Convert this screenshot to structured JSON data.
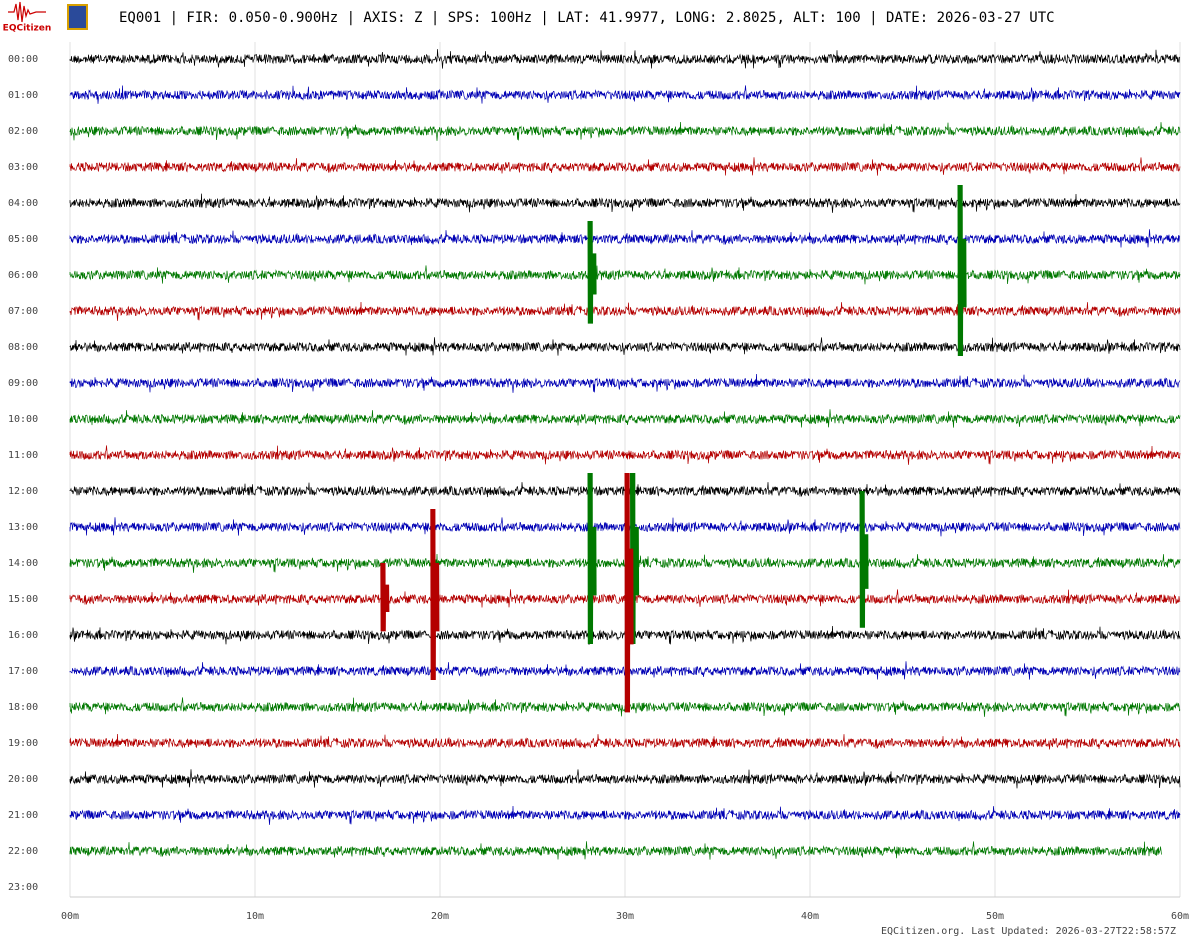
{
  "chart_data": {
    "type": "helicorder",
    "title": "EQ001 | FIR: 0.050-0.900Hz | AXIS: Z | SPS: 100Hz | LAT: 41.9977, LONG: 2.8025, ALT: 100 | DATE: 2026-03-27 UTC",
    "logo": "EQCitizen",
    "footer": "EQCitizen.org. Last Updated: 2026-03-27T22:58:57Z",
    "xlim": [
      0,
      60
    ],
    "xticks": [
      {
        "value": 0,
        "label": "00m"
      },
      {
        "value": 10,
        "label": "10m"
      },
      {
        "value": 20,
        "label": "20m"
      },
      {
        "value": 30,
        "label": "30m"
      },
      {
        "value": 40,
        "label": "40m"
      },
      {
        "value": 50,
        "label": "50m"
      },
      {
        "value": 60,
        "label": "60m"
      }
    ],
    "grid": true,
    "rows": [
      {
        "label": "00:00",
        "color": "#000000",
        "end": 60
      },
      {
        "label": "01:00",
        "color": "#0000b4",
        "end": 60
      },
      {
        "label": "02:00",
        "color": "#007800",
        "end": 60
      },
      {
        "label": "03:00",
        "color": "#b40000",
        "end": 60
      },
      {
        "label": "04:00",
        "color": "#000000",
        "end": 60
      },
      {
        "label": "05:00",
        "color": "#0000b4",
        "end": 60
      },
      {
        "label": "06:00",
        "color": "#007800",
        "end": 60
      },
      {
        "label": "07:00",
        "color": "#b40000",
        "end": 60
      },
      {
        "label": "08:00",
        "color": "#000000",
        "end": 60
      },
      {
        "label": "09:00",
        "color": "#0000b4",
        "end": 60
      },
      {
        "label": "10:00",
        "color": "#007800",
        "end": 60
      },
      {
        "label": "11:00",
        "color": "#b40000",
        "end": 60
      },
      {
        "label": "12:00",
        "color": "#000000",
        "end": 60
      },
      {
        "label": "13:00",
        "color": "#0000b4",
        "end": 60
      },
      {
        "label": "14:00",
        "color": "#007800",
        "end": 60
      },
      {
        "label": "15:00",
        "color": "#b40000",
        "end": 60
      },
      {
        "label": "16:00",
        "color": "#000000",
        "end": 60
      },
      {
        "label": "17:00",
        "color": "#0000b4",
        "end": 60
      },
      {
        "label": "18:00",
        "color": "#007800",
        "end": 60
      },
      {
        "label": "19:00",
        "color": "#b40000",
        "end": 60
      },
      {
        "label": "20:00",
        "color": "#000000",
        "end": 60
      },
      {
        "label": "21:00",
        "color": "#0000b4",
        "end": 60
      },
      {
        "label": "22:00",
        "color": "#007800",
        "end": 59
      },
      {
        "label": "23:00",
        "color": "#000000",
        "end": 0
      }
    ],
    "events": [
      {
        "row": 6,
        "minute": 48,
        "amplitude": 2.5
      },
      {
        "row": 6,
        "minute": 28,
        "amplitude": 1.5
      },
      {
        "row": 14,
        "minute": 28,
        "amplitude": 2.5
      },
      {
        "row": 14,
        "minute": 30.3,
        "amplitude": 2.5
      },
      {
        "row": 14,
        "minute": 42.7,
        "amplitude": 2
      },
      {
        "row": 15,
        "minute": 19.5,
        "amplitude": 2.5
      },
      {
        "row": 15,
        "minute": 16.8,
        "amplitude": 1
      },
      {
        "row": 15,
        "minute": 30,
        "amplitude": 3.5
      }
    ]
  }
}
